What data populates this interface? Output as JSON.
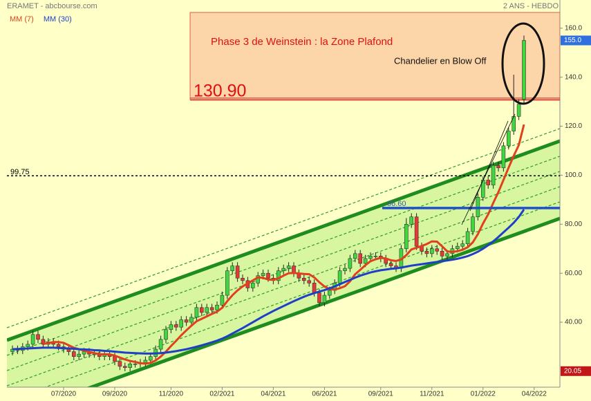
{
  "chart_data": {
    "type": "candlestick",
    "title": "ERAMET - abcbourse.com",
    "subtitle": "2 ANS - HEBDO",
    "categories": [
      null,
      null,
      null,
      null,
      null,
      null,
      null,
      null,
      null,
      null,
      "07/2020",
      null,
      null,
      null,
      null,
      null,
      null,
      null,
      null,
      null,
      "09/2020",
      null,
      null,
      null,
      null,
      null,
      null,
      null,
      null,
      null,
      null,
      "11/2020",
      null,
      null,
      null,
      null,
      null,
      null,
      null,
      null,
      null,
      "02/2021",
      null,
      null,
      null,
      null,
      null,
      null,
      null,
      null,
      null,
      "04/2021",
      null,
      null,
      null,
      null,
      null,
      null,
      null,
      null,
      null,
      "06/2021",
      null,
      null,
      null,
      null,
      null,
      null,
      null,
      null,
      null,
      null,
      "09/2021",
      null,
      null,
      null,
      null,
      null,
      null,
      null,
      null,
      null,
      "11/2021",
      null,
      null,
      null,
      null,
      null,
      null,
      null,
      null,
      null,
      "01/2022",
      null,
      null,
      null,
      null,
      null,
      null,
      null,
      null,
      null,
      "04/2022"
    ],
    "open": [
      28,
      29,
      28.5,
      30,
      31,
      35,
      33,
      31,
      32,
      31,
      30,
      29,
      28,
      26,
      27,
      28,
      27,
      27,
      26,
      27,
      26,
      24,
      22,
      21.5,
      23,
      23,
      23.5,
      24.5,
      26,
      29,
      33,
      37,
      39,
      38,
      41,
      40,
      42,
      46,
      44,
      46,
      45,
      47,
      51,
      61,
      63,
      58,
      57,
      54,
      56,
      59,
      60,
      58,
      57,
      61,
      62,
      63,
      60,
      58,
      57,
      56,
      52,
      48,
      51,
      53,
      56,
      61,
      62,
      66,
      68,
      64,
      66,
      67,
      67,
      66,
      64,
      63,
      62,
      70,
      80,
      83,
      71,
      69,
      68,
      70,
      69,
      67,
      68,
      70,
      71,
      72,
      77,
      83,
      91,
      98,
      96,
      104,
      103,
      112,
      118,
      124,
      131,
      null,
      null
    ],
    "high": [
      30.5,
      30.5,
      31.5,
      32.5,
      36.5,
      36.5,
      34.5,
      33.5,
      33.5,
      32.5,
      31.5,
      30.5,
      29.5,
      28.5,
      29.5,
      29.5,
      28.5,
      28.5,
      28.5,
      28.5,
      27.5,
      25.5,
      23.5,
      24.5,
      24.5,
      25,
      26,
      27.5,
      30.5,
      34.5,
      38.5,
      40.5,
      40.5,
      42.5,
      42.5,
      43.5,
      47.5,
      47.5,
      47.5,
      47.5,
      48.5,
      52.5,
      62.5,
      64.5,
      64.5,
      59.5,
      58.5,
      57.5,
      60.5,
      61.5,
      61.5,
      59.5,
      62.5,
      63.5,
      64.5,
      64.5,
      61.5,
      59.5,
      58.5,
      57.5,
      53.5,
      52.5,
      54.5,
      57.5,
      62.5,
      63.5,
      67.5,
      69.5,
      69.5,
      67.5,
      68.5,
      68.5,
      68.5,
      67.5,
      65.5,
      64.5,
      71.5,
      82.5,
      84.5,
      84.5,
      72.5,
      70.5,
      71.5,
      71.5,
      70.5,
      69.5,
      71.5,
      72.5,
      73.5,
      78.5,
      84.5,
      92.5,
      99.5,
      99.5,
      105.5,
      105.5,
      113.5,
      119.5,
      141,
      131,
      157,
      null,
      null
    ],
    "low": [
      26.5,
      27,
      27,
      28.5,
      29.5,
      31.5,
      29.5,
      29.5,
      29.5,
      28.5,
      27.5,
      26.5,
      24.5,
      24.5,
      25.5,
      25.5,
      25.5,
      24.5,
      24.5,
      24.5,
      22.5,
      20.5,
      20,
      20,
      21.5,
      21.5,
      22,
      23,
      24.5,
      27.5,
      31.5,
      35.5,
      36.5,
      36.5,
      38.5,
      38.5,
      40.5,
      42.5,
      42.5,
      43.5,
      43.5,
      45.5,
      49.5,
      59.5,
      56.5,
      55.5,
      52.5,
      52.5,
      54.5,
      57.5,
      56.5,
      55.5,
      55.5,
      59.5,
      60.5,
      58.5,
      56.5,
      55.5,
      54.5,
      50.5,
      46.5,
      46.5,
      49.5,
      51.5,
      54.5,
      59.5,
      60.5,
      64.5,
      62.5,
      62.5,
      64.5,
      65.5,
      64.5,
      62.5,
      61.5,
      60.5,
      60.5,
      68.5,
      78.5,
      69.5,
      67.5,
      66.5,
      66.5,
      67.5,
      65.5,
      65.5,
      66.5,
      68.5,
      69.5,
      70.5,
      75.5,
      81.5,
      89.5,
      94.5,
      94.5,
      101.5,
      101.5,
      110.5,
      116.5,
      122.5,
      129,
      null,
      null
    ],
    "close": [
      29,
      28.5,
      30,
      31,
      35,
      33,
      31,
      32,
      31,
      30,
      29,
      28,
      26,
      27,
      28,
      27,
      27,
      26,
      27,
      26,
      24,
      22,
      21.5,
      23,
      23,
      23.5,
      24.5,
      26,
      29,
      33,
      37,
      39,
      38,
      41,
      40,
      42,
      46,
      44,
      46,
      45,
      47,
      51,
      61,
      63,
      58,
      57,
      54,
      56,
      59,
      60,
      58,
      57,
      61,
      62,
      63,
      60,
      58,
      57,
      56,
      52,
      48,
      51,
      53,
      56,
      61,
      62,
      66,
      68,
      64,
      66,
      67,
      67,
      66,
      64,
      63,
      62,
      70,
      80,
      83,
      71,
      69,
      68,
      70,
      69,
      67,
      68,
      70,
      71,
      72,
      77,
      83,
      91,
      98,
      96,
      104,
      103,
      112,
      118,
      124,
      129,
      155,
      null,
      null
    ],
    "up_color": "#3fd63f",
    "down_color": "#e53935",
    "series": [
      {
        "name": "MM (7)",
        "color": "#e0401e",
        "values": [
          null,
          null,
          null,
          null,
          null,
          null,
          31.1,
          31.5,
          31.9,
          31.9,
          31.6,
          30.6,
          29.6,
          29.0,
          28.4,
          27.9,
          27.4,
          27.0,
          26.9,
          26.9,
          26.4,
          25.6,
          24.8,
          24.2,
          23.8,
          23.3,
          23.1,
          23.4,
          24.4,
          26.0,
          28.0,
          30.3,
          32.4,
          34.7,
          36.7,
          38.6,
          40.4,
          41.4,
          42.4,
          43.4,
          44.3,
          45.9,
          48.6,
          51.0,
          53.0,
          54.6,
          55.9,
          57.1,
          58.3,
          58.1,
          57.4,
          57.3,
          57.9,
          59.0,
          60.0,
          60.1,
          59.9,
          59.7,
          59.6,
          58.3,
          56.3,
          54.6,
          53.6,
          53.3,
          53.9,
          54.7,
          56.7,
          59.6,
          61.4,
          63.3,
          64.9,
          65.7,
          66.3,
          66.0,
          65.3,
          65.0,
          65.6,
          67.4,
          69.7,
          70.4,
          71.1,
          71.9,
          73.0,
          72.9,
          71.0,
          68.9,
          68.7,
          69.0,
          69.6,
          70.6,
          72.6,
          76.0,
          80.3,
          84.0,
          88.7,
          93.1,
          98.1,
          103.1,
          107.9,
          112.3,
          120.7,
          null,
          null
        ]
      },
      {
        "name": "MM (30)",
        "color": "#1f3fc8",
        "values": [
          29.0,
          29.1,
          29.2,
          29.3,
          29.4,
          29.5,
          29.6,
          29.6,
          29.6,
          29.5,
          29.4,
          29.3,
          29.2,
          29.0,
          28.9,
          28.8,
          28.6,
          28.5,
          28.3,
          28.2,
          28.0,
          27.8,
          27.6,
          27.5,
          27.4,
          27.3,
          27.2,
          27.2,
          27.3,
          27.4,
          27.6,
          27.9,
          28.2,
          28.6,
          29.0,
          29.5,
          30.0,
          30.6,
          31.2,
          31.8,
          32.5,
          33.3,
          34.3,
          35.4,
          36.5,
          37.6,
          38.8,
          40.0,
          41.2,
          42.4,
          43.5,
          44.6,
          45.6,
          46.6,
          47.6,
          48.6,
          49.5,
          50.4,
          51.2,
          51.9,
          52.5,
          53.1,
          53.8,
          54.6,
          55.5,
          56.4,
          57.3,
          58.2,
          59.0,
          59.7,
          60.3,
          60.8,
          61.2,
          61.5,
          61.8,
          62.0,
          62.3,
          62.7,
          63.1,
          63.4,
          63.7,
          64.0,
          64.3,
          64.6,
          64.9,
          65.2,
          65.5,
          65.9,
          66.4,
          67.0,
          67.8,
          68.8,
          70.0,
          71.4,
          73.0,
          74.8,
          76.7,
          78.6,
          80.6,
          83.0,
          86.0,
          null,
          null
        ]
      }
    ],
    "ylim": [
      13.5,
      171.5
    ],
    "yticks": [
      {
        "value": 40,
        "label": "40.00"
      },
      {
        "value": 60,
        "label": "60.00"
      },
      {
        "value": 80,
        "label": "80.00"
      },
      {
        "value": 100,
        "label": "100.0"
      },
      {
        "value": 120,
        "label": "120.0"
      },
      {
        "value": 140,
        "label": "140.0"
      },
      {
        "value": 160,
        "label": "160.0"
      }
    ],
    "zone": {
      "value": 130.9,
      "label": "130.90"
    },
    "resistance": {
      "value": 99.75
    },
    "support": {
      "value": 86.6,
      "label": "86.60"
    },
    "last_tag": {
      "value": 155,
      "label": "155.0"
    },
    "low_tag": {
      "value": 20.05
    },
    "annotations": [
      "Phase 3 de Weinstein : la Zone Plafond",
      "Chandelier en Blow Off"
    ]
  }
}
